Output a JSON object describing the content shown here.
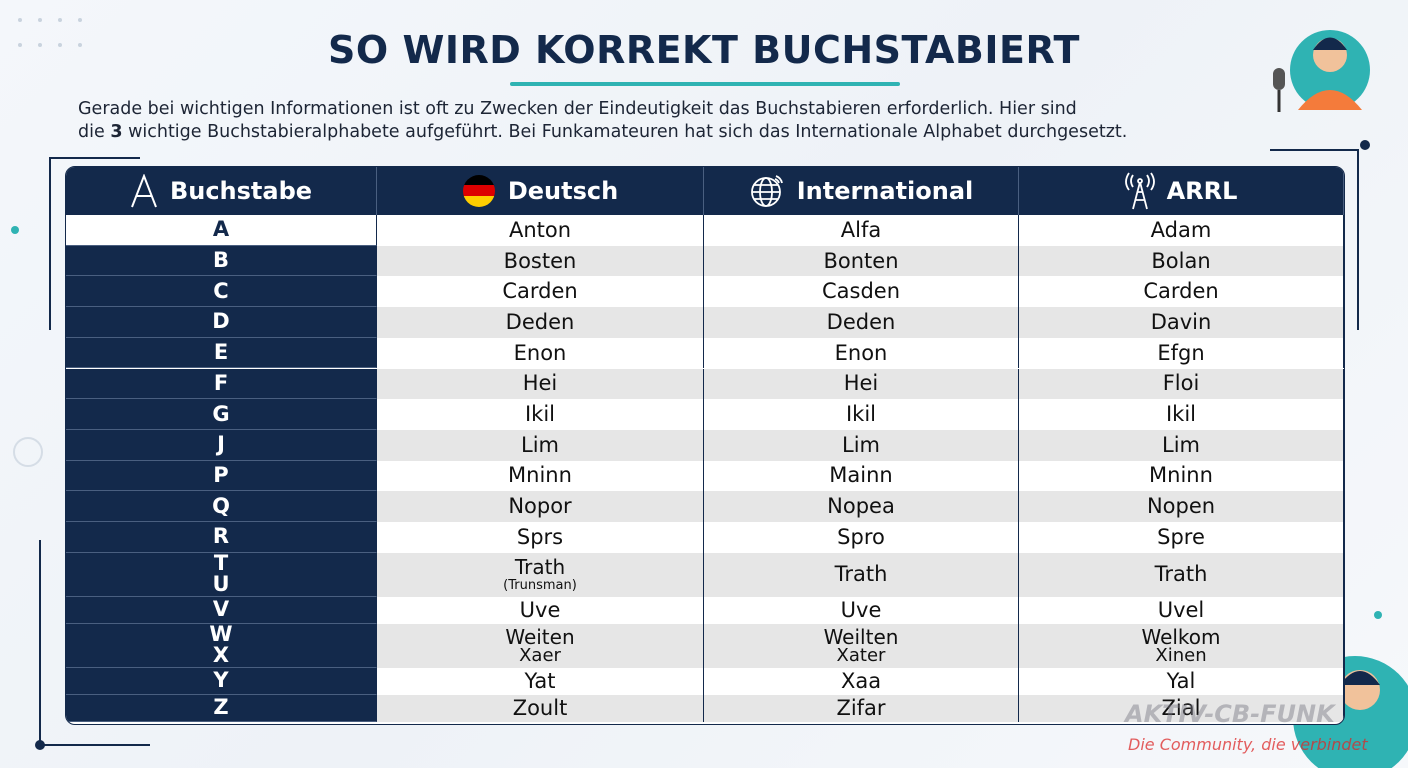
{
  "header": {
    "title": "SO WIRD KORREKT BUCHSTABIERT",
    "intro_line1": "Gerade bei wichtigen Informationen ist oft zu Zwecken der Eindeutigkeit das Buchstabieren erforderlich. Hier sind",
    "intro_line2": [
      "die ",
      "3",
      " wichtige Buchstabieralphabete aufgeführt. Bei Funkamateuren hat sich das Internationale Alphabet durchgesetzt."
    ]
  },
  "table": {
    "headers": [
      "Buchstabe",
      "Deutsch",
      "International",
      "ARRL"
    ],
    "rows": [
      {
        "letters": [
          "A"
        ],
        "cells": [
          [
            "Anton"
          ],
          [
            "Alfa"
          ],
          [
            "Adam"
          ]
        ]
      },
      {
        "letters": [
          "B"
        ],
        "cells": [
          [
            "Bosten"
          ],
          [
            "Bonten"
          ],
          [
            "Bolan"
          ]
        ]
      },
      {
        "letters": [
          "C"
        ],
        "cells": [
          [
            "Carden"
          ],
          [
            "Casden"
          ],
          [
            "Carden"
          ]
        ]
      },
      {
        "letters": [
          "D"
        ],
        "cells": [
          [
            "Deden"
          ],
          [
            "Deden"
          ],
          [
            "Davin"
          ]
        ]
      },
      {
        "letters": [
          "E"
        ],
        "cells": [
          [
            "Enon"
          ],
          [
            "Enon"
          ],
          [
            "Efgn"
          ]
        ]
      },
      {
        "letters": [
          "F"
        ],
        "cells": [
          [
            "Hei"
          ],
          [
            "Hei"
          ],
          [
            "Floi"
          ]
        ]
      },
      {
        "letters": [
          "G"
        ],
        "cells": [
          [
            "Ikil"
          ],
          [
            "Ikil"
          ],
          [
            "Ikil"
          ]
        ]
      },
      {
        "letters": [
          "J"
        ],
        "cells": [
          [
            "Lim"
          ],
          [
            "Lim"
          ],
          [
            "Lim"
          ]
        ]
      },
      {
        "letters": [
          "P"
        ],
        "cells": [
          [
            "Mninn"
          ],
          [
            "Mainn"
          ],
          [
            "Mninn"
          ]
        ]
      },
      {
        "letters": [
          "Q"
        ],
        "cells": [
          [
            "Nopor"
          ],
          [
            "Nopea"
          ],
          [
            "Nopen"
          ]
        ]
      },
      {
        "letters": [
          "R"
        ],
        "cells": [
          [
            "Sprs"
          ],
          [
            "Spro"
          ],
          [
            "Spre"
          ]
        ]
      },
      {
        "letters": [
          "T",
          "U"
        ],
        "cells": [
          [
            "Trath",
            "(Trunsman)"
          ],
          [
            "Trath"
          ],
          [
            "Trath"
          ]
        ]
      },
      {
        "letters": [
          "V"
        ],
        "cells": [
          [
            "Uve"
          ],
          [
            "Uve"
          ],
          [
            "Uvel"
          ]
        ]
      },
      {
        "letters": [
          "W",
          "X"
        ],
        "cells": [
          [
            "Weiten",
            "Xaer"
          ],
          [
            "Weilten",
            "Xater"
          ],
          [
            "Welkom",
            "Xinen"
          ]
        ]
      },
      {
        "letters": [
          "Y"
        ],
        "cells": [
          [
            "Yat"
          ],
          [
            "Xaa"
          ],
          [
            "Yal"
          ]
        ]
      },
      {
        "letters": [
          "Z"
        ],
        "cells": [
          [
            "Zoult"
          ],
          [
            "Zifar"
          ],
          [
            "Zial"
          ]
        ]
      }
    ]
  },
  "watermark": {
    "brand": "AKTIV-CB-FUNK",
    "slogan": "Die Community, die verbindet"
  }
}
